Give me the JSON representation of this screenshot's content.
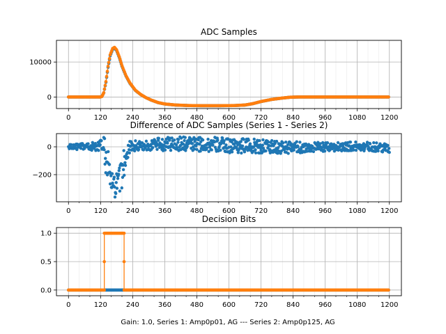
{
  "figure": {
    "footer": "Gain: 1.0, Series 1: Amp0p01, AG --- Series 2: Amp0p125, AG"
  },
  "chart_data": [
    {
      "type": "scatter",
      "title": "ADC Samples",
      "xlabel": "",
      "ylabel": "",
      "xlim": [
        -45,
        1245
      ],
      "ylim": [
        -3300,
        16200
      ],
      "grid": true,
      "xticks": [
        0,
        120,
        240,
        360,
        480,
        600,
        720,
        840,
        960,
        1080,
        1200
      ],
      "yticks": [
        0,
        10000
      ],
      "series": [
        {
          "name": "Series 1",
          "color": "#1f77b4",
          "points": [
            [
              0,
              0
            ],
            [
              100,
              0
            ],
            [
              118,
              0
            ],
            [
              125,
              150
            ],
            [
              132,
              1200
            ],
            [
              140,
              4200
            ],
            [
              148,
              8500
            ],
            [
              156,
              11800
            ],
            [
              165,
              13600
            ],
            [
              172,
              14000
            ],
            [
              180,
              13300
            ],
            [
              190,
              11300
            ],
            [
              200,
              8800
            ],
            [
              215,
              6000
            ],
            [
              230,
              3900
            ],
            [
              250,
              1900
            ],
            [
              270,
              700
            ],
            [
              290,
              -200
            ],
            [
              310,
              -900
            ],
            [
              335,
              -1600
            ],
            [
              360,
              -2000
            ],
            [
              400,
              -2300
            ],
            [
              450,
              -2450
            ],
            [
              500,
              -2500
            ],
            [
              560,
              -2500
            ],
            [
              620,
              -2450
            ],
            [
              660,
              -2300
            ],
            [
              690,
              -1900
            ],
            [
              720,
              -1300
            ],
            [
              760,
              -700
            ],
            [
              800,
              -300
            ],
            [
              830,
              -60
            ],
            [
              860,
              0
            ],
            [
              1000,
              0
            ],
            [
              1200,
              0
            ]
          ]
        },
        {
          "name": "Series 2",
          "color": "#ff7f0e",
          "points": [
            [
              0,
              0
            ],
            [
              100,
              0
            ],
            [
              118,
              0
            ],
            [
              125,
              150
            ],
            [
              132,
              1250
            ],
            [
              140,
              4400
            ],
            [
              148,
              8800
            ],
            [
              156,
              12100
            ],
            [
              165,
              13850
            ],
            [
              172,
              14200
            ],
            [
              180,
              13500
            ],
            [
              190,
              11500
            ],
            [
              200,
              9000
            ],
            [
              215,
              6100
            ],
            [
              230,
              4000
            ],
            [
              250,
              1950
            ],
            [
              270,
              720
            ],
            [
              290,
              -190
            ],
            [
              310,
              -890
            ],
            [
              335,
              -1590
            ],
            [
              360,
              -1990
            ],
            [
              400,
              -2290
            ],
            [
              450,
              -2440
            ],
            [
              500,
              -2490
            ],
            [
              560,
              -2490
            ],
            [
              620,
              -2440
            ],
            [
              660,
              -2290
            ],
            [
              690,
              -1890
            ],
            [
              720,
              -1290
            ],
            [
              760,
              -690
            ],
            [
              800,
              -290
            ],
            [
              830,
              -55
            ],
            [
              860,
              0
            ],
            [
              1000,
              0
            ],
            [
              1200,
              0
            ]
          ]
        }
      ]
    },
    {
      "type": "scatter",
      "title": "Difference of ADC Samples (Series 1 - Series 2)",
      "xlabel": "",
      "ylabel": "",
      "xlim": [
        -45,
        1245
      ],
      "ylim": [
        -395,
        95
      ],
      "grid": true,
      "xticks": [
        0,
        120,
        240,
        360,
        480,
        600,
        720,
        840,
        960,
        1080,
        1200
      ],
      "yticks": [
        -200,
        0
      ],
      "series": [
        {
          "name": "Series 1 - Series 2",
          "color": "#1f77b4",
          "envelope": [
            [
              0,
              -20,
              20
            ],
            [
              60,
              -25,
              25
            ],
            [
              110,
              -30,
              35
            ],
            [
              125,
              -40,
              60
            ],
            [
              132,
              -80,
              80
            ],
            [
              140,
              -200,
              50
            ],
            [
              148,
              -260,
              -20
            ],
            [
              156,
              -320,
              -120
            ],
            [
              165,
              -380,
              -200
            ],
            [
              172,
              -370,
              -220
            ],
            [
              180,
              -360,
              -190
            ],
            [
              190,
              -330,
              -150
            ],
            [
              200,
              -300,
              -100
            ],
            [
              205,
              -250,
              -30
            ],
            [
              212,
              -170,
              30
            ],
            [
              220,
              -90,
              40
            ],
            [
              230,
              -40,
              40
            ],
            [
              260,
              -30,
              45
            ],
            [
              300,
              -25,
              50
            ],
            [
              360,
              -30,
              70
            ],
            [
              420,
              -30,
              75
            ],
            [
              480,
              -35,
              70
            ],
            [
              540,
              -40,
              70
            ],
            [
              600,
              -45,
              65
            ],
            [
              660,
              -45,
              60
            ],
            [
              700,
              -45,
              55
            ],
            [
              760,
              -50,
              45
            ],
            [
              820,
              -50,
              40
            ],
            [
              880,
              -45,
              35
            ],
            [
              960,
              -35,
              30
            ],
            [
              1040,
              -30,
              35
            ],
            [
              1120,
              -30,
              35
            ],
            [
              1200,
              -40,
              20
            ]
          ]
        }
      ]
    },
    {
      "type": "scatter",
      "title": "Decision Bits",
      "xlabel": "Gain: 1.0, Series 1: Amp0p01, AG --- Series 2: Amp0p125, AG",
      "ylabel": "",
      "xlim": [
        -45,
        1245
      ],
      "ylim": [
        -0.1,
        1.1
      ],
      "grid": true,
      "xticks": [
        0,
        120,
        240,
        360,
        480,
        600,
        720,
        840,
        960,
        1080,
        1200
      ],
      "yticks": [
        0.0,
        0.5,
        1.0
      ],
      "series": [
        {
          "name": "Series 1",
          "color": "#1f77b4",
          "points": [
            [
              0,
              0
            ],
            [
              1200,
              0
            ]
          ]
        },
        {
          "name": "Series 2",
          "color": "#ff7f0e",
          "points": [
            [
              0,
              0
            ],
            [
              134,
              0
            ],
            [
              134,
              1
            ],
            [
              208,
              1
            ],
            [
              208,
              0
            ],
            [
              1200,
              0
            ]
          ]
        }
      ]
    }
  ]
}
